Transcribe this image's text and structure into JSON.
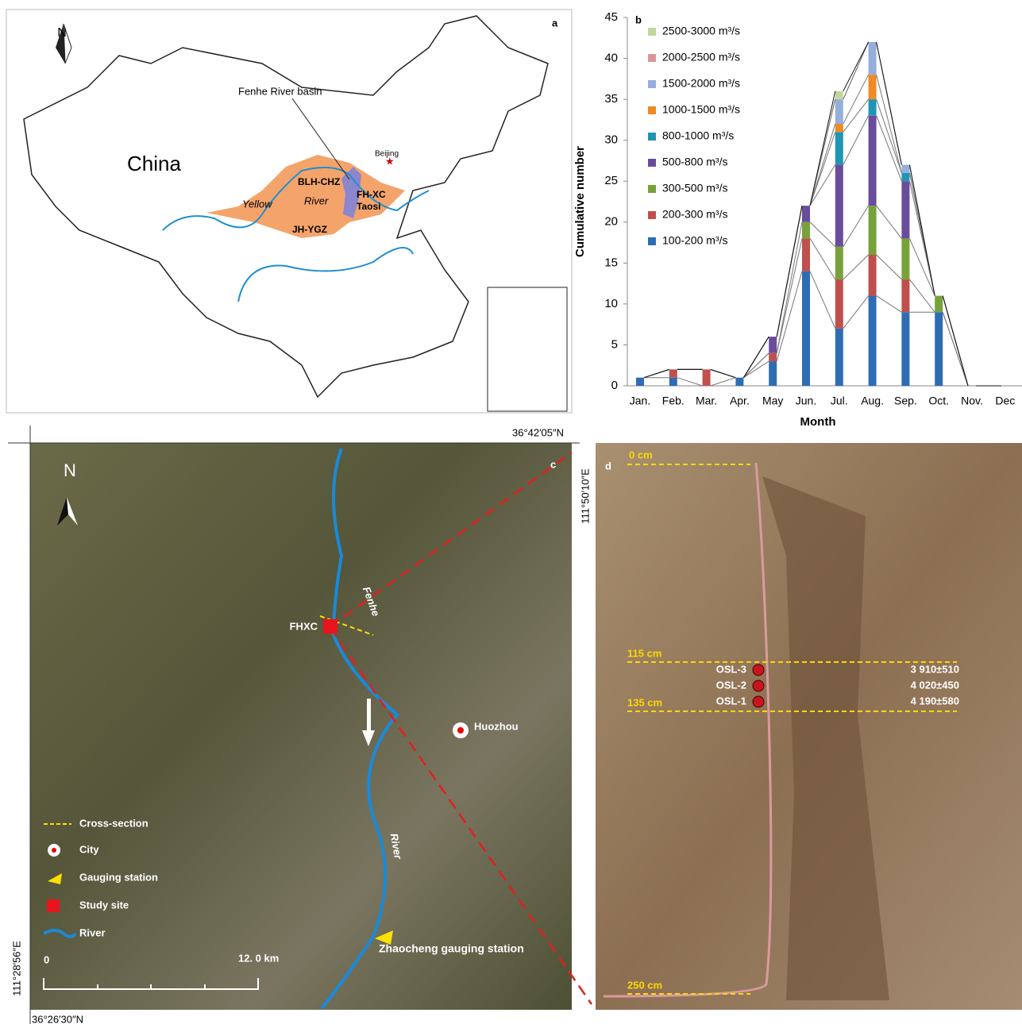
{
  "chart_data": {
    "type": "bar",
    "stacked": true,
    "panel_label": "b",
    "xlabel": "Month",
    "ylabel": "Cumulative number",
    "categories": [
      "Jan.",
      "Feb.",
      "Mar.",
      "Apr.",
      "May",
      "Jun.",
      "Jul.",
      "Aug.",
      "Sep.",
      "Oct.",
      "Nov.",
      "Dec"
    ],
    "ylim": [
      0,
      45
    ],
    "yticks": [
      0,
      5,
      10,
      15,
      20,
      25,
      30,
      35,
      40,
      45
    ],
    "series": [
      {
        "name": "100-200 m³/s",
        "color": "#2e6db4",
        "values": [
          1,
          1,
          0,
          1,
          3,
          14,
          7,
          11,
          9,
          9,
          0,
          0
        ]
      },
      {
        "name": "200-300 m³/s",
        "color": "#c0504d",
        "values": [
          0,
          1,
          2,
          0,
          1,
          4,
          6,
          5,
          4,
          0,
          0,
          0
        ]
      },
      {
        "name": "300-500 m³/s",
        "color": "#77a23a",
        "values": [
          0,
          0,
          0,
          0,
          0,
          2,
          4,
          6,
          5,
          2,
          0,
          0
        ]
      },
      {
        "name": "500-800 m³/s",
        "color": "#6a4c9c",
        "values": [
          0,
          0,
          0,
          0,
          2,
          2,
          10,
          11,
          7,
          0,
          0,
          0
        ]
      },
      {
        "name": "800-1000 m³/s",
        "color": "#1f95b3",
        "values": [
          0,
          0,
          0,
          0,
          0,
          0,
          4,
          2,
          1,
          0,
          0,
          0
        ]
      },
      {
        "name": "1000-1500 m³/s",
        "color": "#f08a24",
        "values": [
          0,
          0,
          0,
          0,
          0,
          0,
          1,
          3,
          0,
          0,
          0,
          0
        ]
      },
      {
        "name": "1500-2000 m³/s",
        "color": "#95aedb",
        "values": [
          0,
          0,
          0,
          0,
          0,
          0,
          3,
          4,
          1,
          0,
          0,
          0
        ]
      },
      {
        "name": "2000-2500 m³/s",
        "color": "#d99694",
        "values": [
          0,
          0,
          0,
          0,
          0,
          0,
          0,
          0,
          0,
          0,
          0,
          0
        ]
      },
      {
        "name": "2500-3000 m³/s",
        "color": "#c3d69b",
        "values": [
          0,
          0,
          0,
          0,
          0,
          0,
          1,
          0,
          0,
          0,
          0,
          0
        ]
      }
    ]
  },
  "map_a": {
    "panel_label": "a",
    "north": "N",
    "country": "China",
    "basin": "Fenhe River basin",
    "capital": "Beijing",
    "sites": [
      "BLH-CHZ",
      "FH-XC",
      "Taosi",
      "JH-YGZ"
    ],
    "river_words": [
      "Yellow",
      "River"
    ]
  },
  "map_c": {
    "panel_label": "c",
    "north": "N",
    "lat_top": "36°42′05″N",
    "lat_bottom": "36°26′30″N",
    "lon_left": "111°28′56″E",
    "lon_right": "111°50′10″E",
    "site": "FHXC",
    "river_words": [
      "Fenhe",
      "River"
    ],
    "city": "Huozhou",
    "station": "Zhaocheng gauging station",
    "legend": [
      "Cross-section",
      "City",
      "Gauging station",
      "Study site",
      "River"
    ],
    "scale": [
      "0",
      "12. 0 km"
    ]
  },
  "photo_d": {
    "panel_label": "d",
    "depths": [
      "0 cm",
      "115 cm",
      "135 cm",
      "250 cm"
    ],
    "samples": [
      "OSL-3",
      "OSL-2",
      "OSL-1"
    ],
    "ages": [
      "3 910±510",
      "4 020±450",
      "4 190±580"
    ]
  }
}
